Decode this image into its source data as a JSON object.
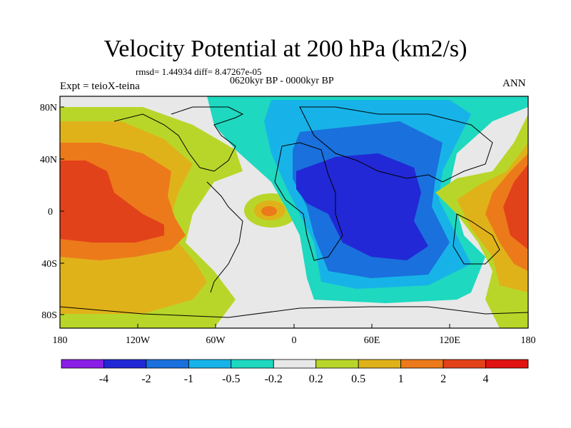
{
  "title": "Velocity Potential at 200 hPa (km2/s)",
  "stats": "rmsd= 1.44934 diff= 8.47267e-05",
  "period": "0620kyr BP - 0000kyr BP",
  "experiment": "Expt = teioX-teina",
  "season": "ANN",
  "axes": {
    "lat_ticks": [
      "80N",
      "40N",
      "0",
      "40S",
      "80S"
    ],
    "lon_ticks": [
      "180",
      "120W",
      "60W",
      "0",
      "60E",
      "120E",
      "180"
    ]
  },
  "colorbar": {
    "labels": [
      "-4",
      "-2",
      "-1",
      "-0.5",
      "-0.2",
      "0.2",
      "0.5",
      "1",
      "2",
      "4"
    ],
    "colors": [
      "#8a1ee6",
      "#2228d6",
      "#1a70dc",
      "#17b3e8",
      "#1ed8c0",
      "#e8e8e8",
      "#b8d62a",
      "#e0b21a",
      "#ec7a1a",
      "#e2421a",
      "#e01212"
    ]
  },
  "palette": {
    "background_land": "#e8e8e8",
    "deep_blue": "#2228d6",
    "mid_blue": "#1a70dc",
    "light_blue": "#17b3e8",
    "cyan": "#1ed8c0",
    "lime": "#b8d62a",
    "gold": "#e0b21a",
    "orange": "#ec7a1a",
    "red_orange": "#e2421a"
  }
}
